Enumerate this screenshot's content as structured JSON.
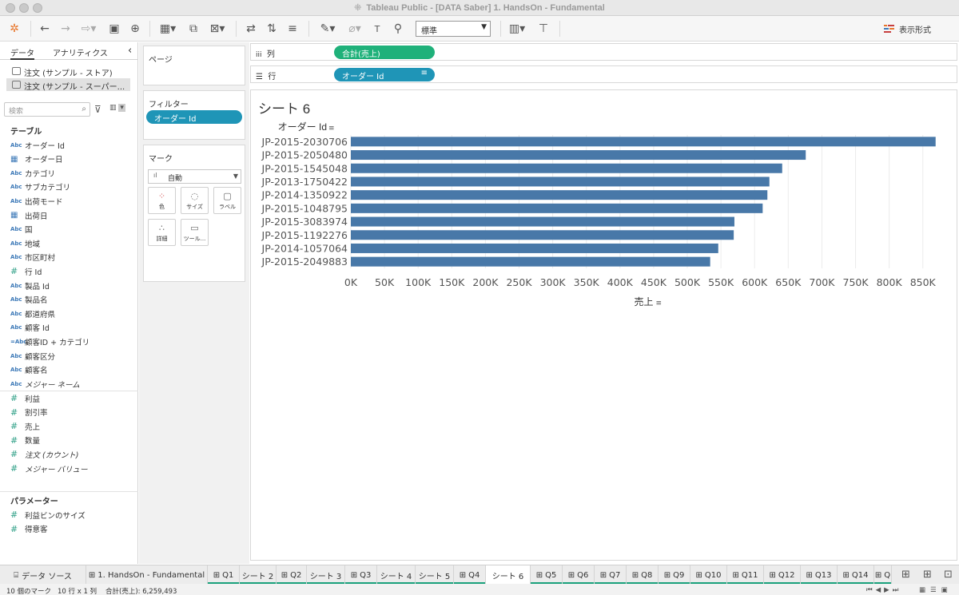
{
  "window": {
    "title": "Tableau Public - [DATA Saber] 1. HandsOn - Fundamental"
  },
  "toolbar": {
    "mark_size_option": "標準",
    "show_me": "表示形式"
  },
  "data_pane": {
    "tab_data": "データ",
    "tab_analytics": "アナリティクス",
    "collapse": "‹",
    "sources": [
      "注文 (サンプル - ストア)",
      "注文 (サンプル - スーパー..."
    ],
    "search_placeholder": "検索",
    "tables_header": "テーブル",
    "dimensions": [
      {
        "type": "Abc",
        "name": "オーダー Id"
      },
      {
        "type": "cal",
        "name": "オーダー日"
      },
      {
        "type": "Abc",
        "name": "カテゴリ"
      },
      {
        "type": "Abc",
        "name": "サブカテゴリ"
      },
      {
        "type": "Abc",
        "name": "出荷モード"
      },
      {
        "type": "cal",
        "name": "出荷日"
      },
      {
        "type": "Abc",
        "name": "国"
      },
      {
        "type": "Abc",
        "name": "地域"
      },
      {
        "type": "Abc",
        "name": "市区町村"
      },
      {
        "type": "#",
        "name": "行 Id"
      },
      {
        "type": "Abc",
        "name": "製品 Id"
      },
      {
        "type": "Abc",
        "name": "製品名"
      },
      {
        "type": "Abc",
        "name": "都道府県"
      },
      {
        "type": "Abc",
        "name": "顧客 Id"
      },
      {
        "type": "=Abc",
        "name": "顧客ID + カテゴリ"
      },
      {
        "type": "Abc",
        "name": "顧客区分"
      },
      {
        "type": "Abc",
        "name": "顧客名"
      },
      {
        "type": "Abc",
        "name": "メジャー ネーム"
      }
    ],
    "measures": [
      {
        "type": "#",
        "name": "利益"
      },
      {
        "type": "#",
        "name": "割引率"
      },
      {
        "type": "#",
        "name": "売上"
      },
      {
        "type": "#",
        "name": "数量"
      },
      {
        "type": "#",
        "name": "注文 (カウント)"
      },
      {
        "type": "#",
        "name": "メジャー バリュー"
      }
    ],
    "parameters_header": "パラメーター",
    "parameters": [
      {
        "type": "#",
        "name": "利益ビンのサイズ"
      },
      {
        "type": "#",
        "name": "得意客"
      }
    ]
  },
  "cards": {
    "pages_title": "ページ",
    "filters_title": "フィルター",
    "filter_pill": "オーダー Id",
    "marks_title": "マーク",
    "mark_type": "自動",
    "mark_buttons": [
      "色",
      "サイズ",
      "ラベル",
      "詳細",
      "ツール..."
    ]
  },
  "shelves": {
    "columns_label": "列",
    "columns_pill": "合計(売上)",
    "rows_label": "行",
    "rows_pill": "オーダー Id"
  },
  "view": {
    "sheet_title": "シート 6"
  },
  "chart_data": {
    "type": "bar",
    "orientation": "horizontal",
    "title": "",
    "row_header": "オーダー Id",
    "xlabel": "売上",
    "categories": [
      "JP-2015-2030706",
      "JP-2015-2050480",
      "JP-2015-1545048",
      "JP-2013-1750422",
      "JP-2014-1350922",
      "JP-2015-1048795",
      "JP-2015-3083974",
      "JP-2015-1192276",
      "JP-2014-1057064",
      "JP-2015-2049883"
    ],
    "values": [
      869000,
      676000,
      641000,
      622000,
      619000,
      612000,
      570000,
      569000,
      546000,
      534000
    ],
    "xlim": [
      0,
      880000
    ],
    "xticks": [
      0,
      50000,
      100000,
      150000,
      200000,
      250000,
      300000,
      350000,
      400000,
      450000,
      500000,
      550000,
      600000,
      650000,
      700000,
      750000,
      800000,
      850000
    ],
    "xtick_labels": [
      "0K",
      "50K",
      "100K",
      "150K",
      "200K",
      "250K",
      "300K",
      "350K",
      "400K",
      "450K",
      "500K",
      "550K",
      "600K",
      "650K",
      "700K",
      "750K",
      "800K",
      "850K"
    ],
    "vertical_grid": true,
    "bar_color": "#4878a8"
  },
  "sheet_tabs": {
    "data_source": "データ ソース",
    "tabs": [
      {
        "label": "1. HandsOn - Fundamental",
        "icon": true,
        "bar": false
      },
      {
        "label": "Q1",
        "icon": true,
        "bar": true
      },
      {
        "label": "シート 2",
        "icon": false,
        "bar": true
      },
      {
        "label": "Q2",
        "icon": true,
        "bar": true
      },
      {
        "label": "シート 3",
        "icon": false,
        "bar": true
      },
      {
        "label": "Q3",
        "icon": true,
        "bar": true
      },
      {
        "label": "シート 4",
        "icon": false,
        "bar": true
      },
      {
        "label": "シート 5",
        "icon": false,
        "bar": true
      },
      {
        "label": "Q4",
        "icon": true,
        "bar": true
      },
      {
        "label": "シート 6",
        "icon": false,
        "bar": false,
        "active": true
      },
      {
        "label": "Q5",
        "icon": true,
        "bar": true
      },
      {
        "label": "Q6",
        "icon": true,
        "bar": true
      },
      {
        "label": "Q7",
        "icon": true,
        "bar": true
      },
      {
        "label": "Q8",
        "icon": true,
        "bar": true
      },
      {
        "label": "Q9",
        "icon": true,
        "bar": true
      },
      {
        "label": "Q10",
        "icon": true,
        "bar": true
      },
      {
        "label": "Q11",
        "icon": true,
        "bar": true
      },
      {
        "label": "Q12",
        "icon": true,
        "bar": true
      },
      {
        "label": "Q13",
        "icon": true,
        "bar": true
      },
      {
        "label": "Q14",
        "icon": true,
        "bar": true
      },
      {
        "label": "Q",
        "icon": true,
        "bar": true
      }
    ]
  },
  "status": {
    "marks": "10 個のマーク",
    "rows_cols": "10 行 x 1 列",
    "sum": "合計(売上): 6,259,493"
  },
  "colors": {
    "bar": "#4878a8",
    "pill_blue": "#1f95b7",
    "pill_green": "#1fb17a",
    "tab_bar": "#1aa17c"
  }
}
